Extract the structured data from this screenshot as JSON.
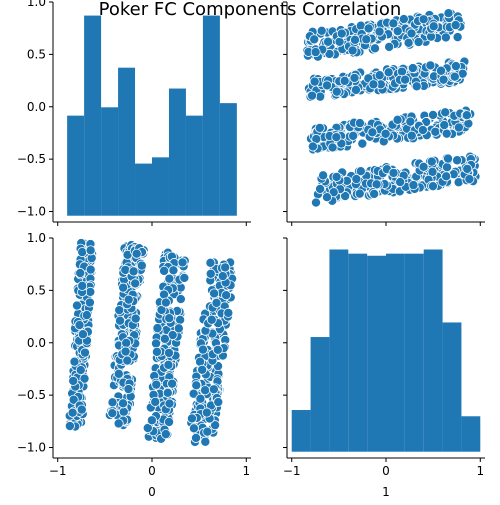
{
  "chart_data": {
    "type": "scatter",
    "kind": "pairplot",
    "title": "Poker FC Components Correlation",
    "variables": [
      "0",
      "1"
    ],
    "bar_color": "#1f77b4",
    "point_color": "#1f77b4",
    "point_edge_color": "#ffffff",
    "xlim": [
      -1.0,
      1.0
    ],
    "ylim": [
      -1.0,
      1.0
    ],
    "x_ticks": [
      -1,
      0,
      1
    ],
    "y_ticks": [
      -1.0,
      -0.5,
      0.0,
      0.5,
      1.0
    ],
    "x_tick_labels": [
      "−1",
      "0",
      "1"
    ],
    "y_tick_labels": [
      "−1.0",
      "−0.5",
      "0.0",
      "0.5",
      "1.0"
    ],
    "histograms": [
      {
        "variable": "0",
        "bins": [
          -0.9,
          -0.72,
          -0.54,
          -0.36,
          -0.18,
          0.0,
          0.18,
          0.36,
          0.54,
          0.72,
          0.9
        ],
        "heights": [
          0.48,
          0.96,
          0.52,
          0.71,
          0.25,
          0.28,
          0.61,
          0.48,
          0.96,
          0.54
        ]
      },
      {
        "variable": "1",
        "bins": [
          -1.0,
          -0.8,
          -0.6,
          -0.4,
          -0.2,
          0.0,
          0.2,
          0.4,
          0.6,
          0.8,
          1.0
        ],
        "heights": [
          0.2,
          0.55,
          0.97,
          0.95,
          0.94,
          0.95,
          0.95,
          0.97,
          0.62,
          0.17
        ]
      }
    ],
    "clusters_1_vs_0": [
      {
        "x_range": [
          -0.88,
          -0.62
        ],
        "y_range": [
          -0.8,
          0.97
        ]
      },
      {
        "x_range": [
          -0.46,
          -0.08
        ],
        "y_range": [
          -0.8,
          0.94
        ]
      },
      {
        "x_range": [
          -0.06,
          0.37
        ],
        "y_range": [
          -0.92,
          0.86
        ]
      },
      {
        "x_range": [
          0.38,
          0.88
        ],
        "y_range": [
          -0.95,
          0.77
        ]
      }
    ],
    "clusters_0_vs_1": [
      {
        "x_range": [
          -0.85,
          0.8
        ],
        "y_range": [
          0.45,
          0.92
        ]
      },
      {
        "x_range": [
          -0.82,
          0.85
        ],
        "y_range": [
          0.08,
          0.44
        ]
      },
      {
        "x_range": [
          -0.8,
          0.9
        ],
        "y_range": [
          -0.42,
          -0.02
        ]
      },
      {
        "x_range": [
          -0.75,
          0.95
        ],
        "y_range": [
          -0.92,
          -0.45
        ]
      }
    ]
  }
}
